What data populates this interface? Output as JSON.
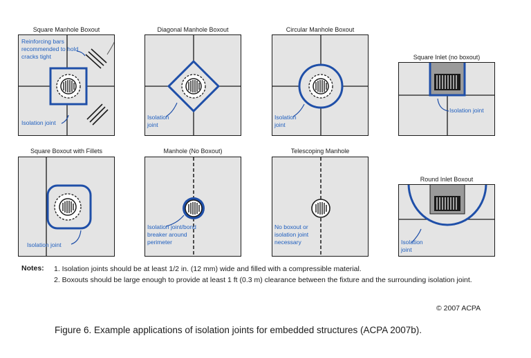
{
  "colors": {
    "joint_blue": "#1f4fa8",
    "label_blue": "#1f5fbf",
    "slab_gray": "#e4e4e4",
    "line": "#1a1a1a"
  },
  "panels": {
    "p1": {
      "title": "Square Manhole Boxout",
      "label_rebar": "Reinforcing bars recommended to hold cracks tight",
      "label_joint": "Isolation joint"
    },
    "p2": {
      "title": "Diagonal Manhole Boxout",
      "label_joint": "Isolation joint"
    },
    "p3": {
      "title": "Circular Manhole Boxout",
      "label_joint": "Isolation joint"
    },
    "p4": {
      "title": "Square Inlet (no boxout)",
      "label_joint": "Isolation joint"
    },
    "p5": {
      "title": "Square Boxout with Fillets",
      "label_joint": "Isolation joint"
    },
    "p6": {
      "title": "Manhole (No Boxout)",
      "label_joint": "Isolation joint/bond breaker around perimeter"
    },
    "p7": {
      "title": "Telescoping Manhole",
      "label_joint": "No boxout or isolation joint necessary"
    },
    "p8": {
      "title": "Round Inlet Boxout",
      "label_joint": "Isolation joint"
    }
  },
  "notes": {
    "heading": "Notes:",
    "items": [
      "1. Isolation joints should be at least 1/2 in. (12 mm) wide and filled with a compressible material.",
      "2. Boxouts should be large enough to provide at least 1 ft (0.3 m) clearance between the fixture and the surrounding isolation joint."
    ]
  },
  "copyright": "© 2007 ACPA",
  "caption": "Figure 6. Example applications of isolation joints for embedded structures (ACPA 2007b)."
}
